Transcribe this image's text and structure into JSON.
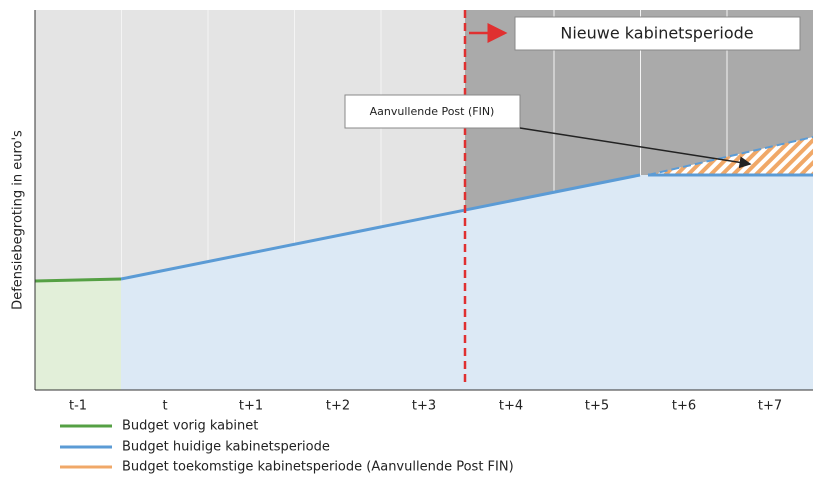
{
  "y_axis_label": "Defensiebegroting in euro's",
  "categories": [
    "t-1",
    "t",
    "t+1",
    "t+2",
    "t+3",
    "t+4",
    "t+5",
    "t+6",
    "t+7"
  ],
  "annotations": {
    "new_period": "Nieuwe kabinetsperiode",
    "extra_post": "Aanvullende Post (FIN)"
  },
  "legend": [
    "Budget vorig kabinet",
    "Budget huidige kabinetsperiode",
    "Budget toekomstige kabinetsperiode (Aanvullende Post FIN)"
  ]
}
